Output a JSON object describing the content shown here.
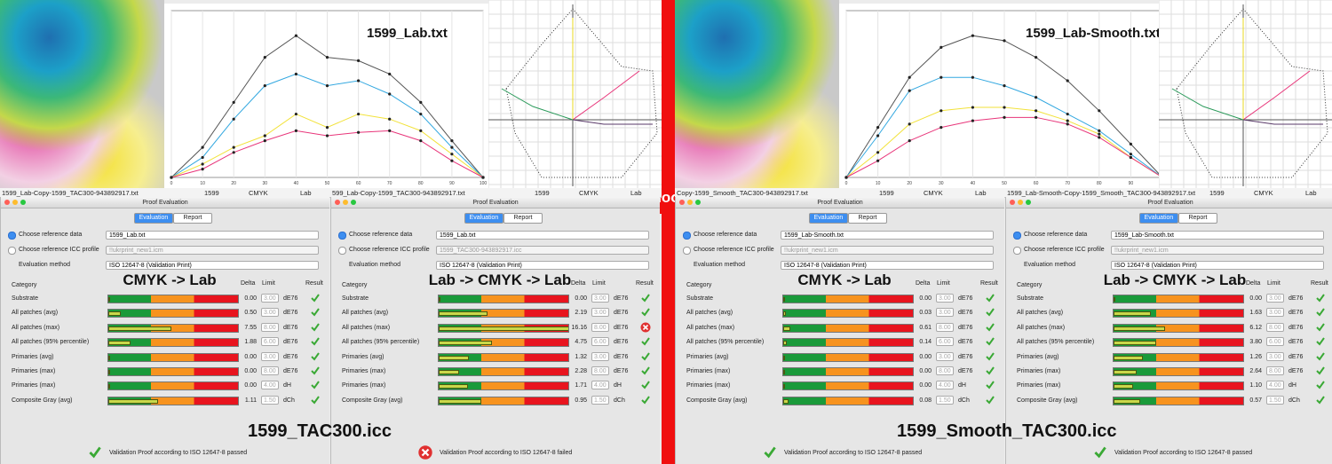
{
  "arrow_label": "Smooth",
  "halves": [
    {
      "chart": {
        "type": "line",
        "title": "1599_Lab.txt",
        "xlim": [
          0,
          100
        ],
        "ylim": [
          0,
          100
        ],
        "xticks": [
          0,
          10,
          20,
          30,
          40,
          50,
          60,
          70,
          80,
          90,
          100
        ],
        "x": [
          0,
          10,
          20,
          30,
          40,
          50,
          60,
          70,
          80,
          90,
          100
        ],
        "series": [
          {
            "name": "K",
            "color": "#555555",
            "values": [
              0,
              18,
              45,
              72,
              85,
              72,
              70,
              62,
              45,
              22,
              0
            ]
          },
          {
            "name": "C",
            "color": "#33a8e0",
            "values": [
              0,
              12,
              35,
              55,
              62,
              55,
              58,
              50,
              38,
              18,
              0
            ]
          },
          {
            "name": "Y",
            "color": "#f2e23a",
            "values": [
              0,
              8,
              18,
              25,
              38,
              30,
              38,
              35,
              28,
              14,
              0
            ]
          },
          {
            "name": "M",
            "color": "#e8357a",
            "values": [
              0,
              5,
              15,
              22,
              28,
              25,
              27,
              28,
              22,
              10,
              0
            ]
          }
        ]
      },
      "status_bars": [
        {
          "file": "1599_Lab-Copy-1599_TAC300-943892917.txt",
          "id": "1599",
          "space1": "CMYK",
          "space2": "Lab"
        },
        {
          "file": "599_Lab-Copy-1599_TAC300-943892917.txt",
          "id": "1599",
          "space1": "CMYK",
          "space2": "Lab"
        }
      ],
      "caption": "1599_TAC300.icc",
      "panels": [
        {
          "window_title": "Proof Evaluation",
          "tabs": [
            "Evaluation",
            "Report"
          ],
          "options": [
            {
              "label": "Choose reference data",
              "value": "1599_Lab.txt"
            },
            {
              "label": "Choose reference ICC profile",
              "value": "!!ukrprint_new1.icm"
            }
          ],
          "method_label": "Evaluation method",
          "method_value": "ISO 12647-8 (Validation Print)",
          "headers": {
            "category": "Category",
            "delta": "Delta",
            "limit": "Limit",
            "result": "Result"
          },
          "overlay": "CMYK -> Lab",
          "rows": [
            {
              "category": "Substrate",
              "delta": "0.00",
              "limit": "3.00",
              "unit": "dE76",
              "pass": true
            },
            {
              "category": "All patches (avg)",
              "delta": "0.50",
              "limit": "3.00",
              "unit": "dE76",
              "pass": true
            },
            {
              "category": "All patches (max)",
              "delta": "7.55",
              "limit": "8.00",
              "unit": "dE76",
              "pass": true
            },
            {
              "category": "All patches (95% percentile)",
              "delta": "1.88",
              "limit": "6.00",
              "unit": "dE76",
              "pass": true
            },
            {
              "category": "Primaries (avg)",
              "delta": "0.00",
              "limit": "3.00",
              "unit": "dE76",
              "pass": true
            },
            {
              "category": "Primaries (max)",
              "delta": "0.00",
              "limit": "8.00",
              "unit": "dE76",
              "pass": true
            },
            {
              "category": "Primaries (max)",
              "delta": "0.00",
              "limit": "4.00",
              "unit": "dH",
              "pass": true
            },
            {
              "category": "Composite Gray (avg)",
              "delta": "1.11",
              "limit": "1.50",
              "unit": "dCh",
              "pass": true
            }
          ],
          "footer": "Validation Proof according to ISO 12647-8 passed",
          "footer_pass": true
        },
        {
          "window_title": "Proof Evaluation",
          "tabs": [
            "Evaluation",
            "Report"
          ],
          "options": [
            {
              "label": "Choose reference data",
              "value": "1599_Lab.txt"
            },
            {
              "label": "Choose reference ICC profile",
              "value": "1599_TAC300-943892917.icc"
            }
          ],
          "method_label": "Evaluation method",
          "method_value": "ISO 12647-8 (Validation Print)",
          "headers": {
            "category": "Category",
            "delta": "Delta",
            "limit": "Limit",
            "result": "Result"
          },
          "overlay": "Lab -> CMYK -> Lab",
          "rows": [
            {
              "category": "Substrate",
              "delta": "0.00",
              "limit": "3.00",
              "unit": "dE76",
              "pass": true
            },
            {
              "category": "All patches (avg)",
              "delta": "2.19",
              "limit": "3.00",
              "unit": "dE76",
              "pass": true
            },
            {
              "category": "All patches (max)",
              "delta": "16.16",
              "limit": "8.00",
              "unit": "dE76",
              "pass": false
            },
            {
              "category": "All patches (95% percentile)",
              "delta": "4.75",
              "limit": "6.00",
              "unit": "dE76",
              "pass": true
            },
            {
              "category": "Primaries (avg)",
              "delta": "1.32",
              "limit": "3.00",
              "unit": "dE76",
              "pass": true
            },
            {
              "category": "Primaries (max)",
              "delta": "2.28",
              "limit": "8.00",
              "unit": "dE76",
              "pass": true
            },
            {
              "category": "Primaries (max)",
              "delta": "1.71",
              "limit": "4.00",
              "unit": "dH",
              "pass": true
            },
            {
              "category": "Composite Gray (avg)",
              "delta": "0.95",
              "limit": "1.50",
              "unit": "dCh",
              "pass": true
            }
          ],
          "footer": "Validation Proof according to ISO 12647-8 failed",
          "footer_pass": false
        }
      ]
    },
    {
      "chart": {
        "type": "line",
        "title": "1599_Lab-Smooth.txt",
        "xlim": [
          0,
          100
        ],
        "ylim": [
          0,
          100
        ],
        "xticks": [
          0,
          10,
          20,
          30,
          40,
          50,
          60,
          70,
          80,
          90,
          100
        ],
        "x": [
          0,
          10,
          20,
          30,
          40,
          50,
          60,
          70,
          80,
          90,
          100
        ],
        "series": [
          {
            "name": "K",
            "color": "#555555",
            "values": [
              0,
              30,
              60,
              78,
              85,
              82,
              72,
              58,
              40,
              20,
              0
            ]
          },
          {
            "name": "C",
            "color": "#33a8e0",
            "values": [
              0,
              25,
              52,
              60,
              60,
              55,
              48,
              38,
              28,
              14,
              0
            ]
          },
          {
            "name": "Y",
            "color": "#f2e23a",
            "values": [
              0,
              15,
              32,
              40,
              42,
              42,
              40,
              34,
              26,
              12,
              0
            ]
          },
          {
            "name": "M",
            "color": "#e8357a",
            "values": [
              0,
              10,
              22,
              30,
              34,
              36,
              36,
              32,
              24,
              12,
              0
            ]
          }
        ]
      },
      "status_bars": [
        {
          "file": "Copy-1599_Smooth_TAC300-943892917.txt",
          "id": "1599",
          "space1": "CMYK",
          "space2": "Lab"
        },
        {
          "file": "1599_Lab-Smooth-Copy-1599_Smooth_TAC300-943892917.txt",
          "id": "1599",
          "space1": "CMYK",
          "space2": "Lab"
        }
      ],
      "caption": "1599_Smooth_TAC300.icc",
      "panels": [
        {
          "window_title": "Proof Evaluation",
          "tabs": [
            "Evaluation",
            "Report"
          ],
          "options": [
            {
              "label": "Choose reference data",
              "value": "1599_Lab-Smooth.txt"
            },
            {
              "label": "Choose reference ICC profile",
              "value": "!!ukrprint_new1.icm"
            }
          ],
          "method_label": "Evaluation method",
          "method_value": "ISO 12647-8 (Validation Print)",
          "headers": {
            "category": "Category",
            "delta": "Delta",
            "limit": "Limit",
            "result": "Result"
          },
          "overlay": "CMYK -> Lab",
          "rows": [
            {
              "category": "Substrate",
              "delta": "0.00",
              "limit": "3.00",
              "unit": "dE76",
              "pass": true
            },
            {
              "category": "All patches (avg)",
              "delta": "0.03",
              "limit": "3.00",
              "unit": "dE76",
              "pass": true
            },
            {
              "category": "All patches (max)",
              "delta": "0.61",
              "limit": "8.00",
              "unit": "dE76",
              "pass": true
            },
            {
              "category": "All patches (95% percentile)",
              "delta": "0.14",
              "limit": "6.00",
              "unit": "dE76",
              "pass": true
            },
            {
              "category": "Primaries (avg)",
              "delta": "0.00",
              "limit": "3.00",
              "unit": "dE76",
              "pass": true
            },
            {
              "category": "Primaries (max)",
              "delta": "0.00",
              "limit": "8.00",
              "unit": "dE76",
              "pass": true
            },
            {
              "category": "Primaries (max)",
              "delta": "0.00",
              "limit": "4.00",
              "unit": "dH",
              "pass": true
            },
            {
              "category": "Composite Gray (avg)",
              "delta": "0.08",
              "limit": "1.50",
              "unit": "dCh",
              "pass": true
            }
          ],
          "footer": "Validation Proof according to ISO 12647-8 passed",
          "footer_pass": true
        },
        {
          "window_title": "Proof Evaluation",
          "tabs": [
            "Evaluation",
            "Report"
          ],
          "options": [
            {
              "label": "Choose reference data",
              "value": "1599_Lab-Smooth.txt"
            },
            {
              "label": "Choose reference ICC profile",
              "value": "!!ukrprint_new1.icm"
            }
          ],
          "method_label": "Evaluation method",
          "method_value": "ISO 12647-8 (Validation Print)",
          "headers": {
            "category": "Category",
            "delta": "Delta",
            "limit": "Limit",
            "result": "Result"
          },
          "overlay": "Lab -> CMYK -> Lab",
          "rows": [
            {
              "category": "Substrate",
              "delta": "0.00",
              "limit": "3.00",
              "unit": "dE76",
              "pass": true
            },
            {
              "category": "All patches (avg)",
              "delta": "1.63",
              "limit": "3.00",
              "unit": "dE76",
              "pass": true
            },
            {
              "category": "All patches (max)",
              "delta": "6.12",
              "limit": "8.00",
              "unit": "dE76",
              "pass": true
            },
            {
              "category": "All patches (95% percentile)",
              "delta": "3.80",
              "limit": "6.00",
              "unit": "dE76",
              "pass": true
            },
            {
              "category": "Primaries (avg)",
              "delta": "1.26",
              "limit": "3.00",
              "unit": "dE76",
              "pass": true
            },
            {
              "category": "Primaries (max)",
              "delta": "2.64",
              "limit": "8.00",
              "unit": "dE76",
              "pass": true
            },
            {
              "category": "Primaries (max)",
              "delta": "1.10",
              "limit": "4.00",
              "unit": "dH",
              "pass": true
            },
            {
              "category": "Composite Gray (avg)",
              "delta": "0.57",
              "limit": "1.50",
              "unit": "dCh",
              "pass": true
            }
          ],
          "footer": "Validation Proof according to ISO 12647-8 passed",
          "footer_pass": true
        }
      ]
    }
  ]
}
